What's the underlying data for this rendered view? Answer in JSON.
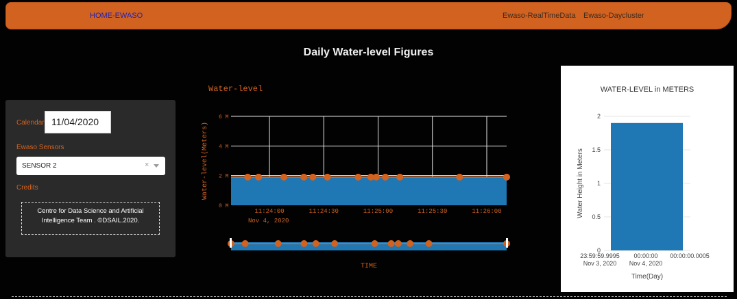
{
  "nav": {
    "home": "HOME-EWASO",
    "realtime": "Ewaso-RealTimeData",
    "daycluster": "Ewaso-Daycluster"
  },
  "page_title": "Daily Water-level Figures",
  "sidebar": {
    "calendar_label": "Calendar",
    "calendar_value": "11/04/2020",
    "sensors_label": "Ewaso Sensors",
    "sensor_value": "SENSOR 2",
    "clear_glyph": "×",
    "credits_label": "Credits",
    "credits_line1": "Centre for Data Science and Artificial",
    "credits_line2": "Intelligence Team . ©DSAIL.2020."
  },
  "colors": {
    "accent": "#d2621f",
    "fill": "#1f77b4",
    "background": "#020202",
    "panel": "#2a2a2a"
  },
  "chart_data": [
    {
      "type": "area",
      "title": "Water-level",
      "xlabel": "TIME",
      "ylabel": "Water-level(Meters)",
      "x_ticks": [
        "11:24:00",
        "11:24:30",
        "11:25:00",
        "11:25:30",
        "11:26:00"
      ],
      "x_date": "Nov 4, 2020",
      "y_ticks": [
        "0 M",
        "2 M",
        "4 M",
        "6 M"
      ],
      "ylim": [
        0,
        6
      ],
      "grid": true,
      "x": [
        "11:23:48",
        "11:23:54",
        "11:24:08",
        "11:24:19",
        "11:24:24",
        "11:24:32",
        "11:24:49",
        "11:24:56",
        "11:24:59",
        "11:25:04",
        "11:25:12",
        "11:25:45"
      ],
      "y": [
        1.9,
        1.9,
        1.9,
        1.9,
        1.9,
        1.9,
        1.9,
        1.9,
        1.9,
        1.9,
        1.9,
        1.9
      ],
      "range_slider": true
    },
    {
      "type": "bar",
      "title": "WATER-LEVEL in METERS",
      "xlabel": "Time(Day)",
      "ylabel": "Water Height in Meters",
      "x_ticks": [
        {
          "line1": "23:59:59.9995",
          "line2": "Nov 3, 2020"
        },
        {
          "line1": "00:00:00",
          "line2": "Nov 4, 2020"
        },
        {
          "line1": "00:00:00.0005",
          "line2": ""
        }
      ],
      "y_ticks": [
        "0",
        "0.5",
        "1",
        "1.5",
        "2"
      ],
      "ylim": [
        0,
        2
      ],
      "categories": [
        "Nov 4, 2020"
      ],
      "values": [
        1.9
      ],
      "grid": true
    }
  ]
}
